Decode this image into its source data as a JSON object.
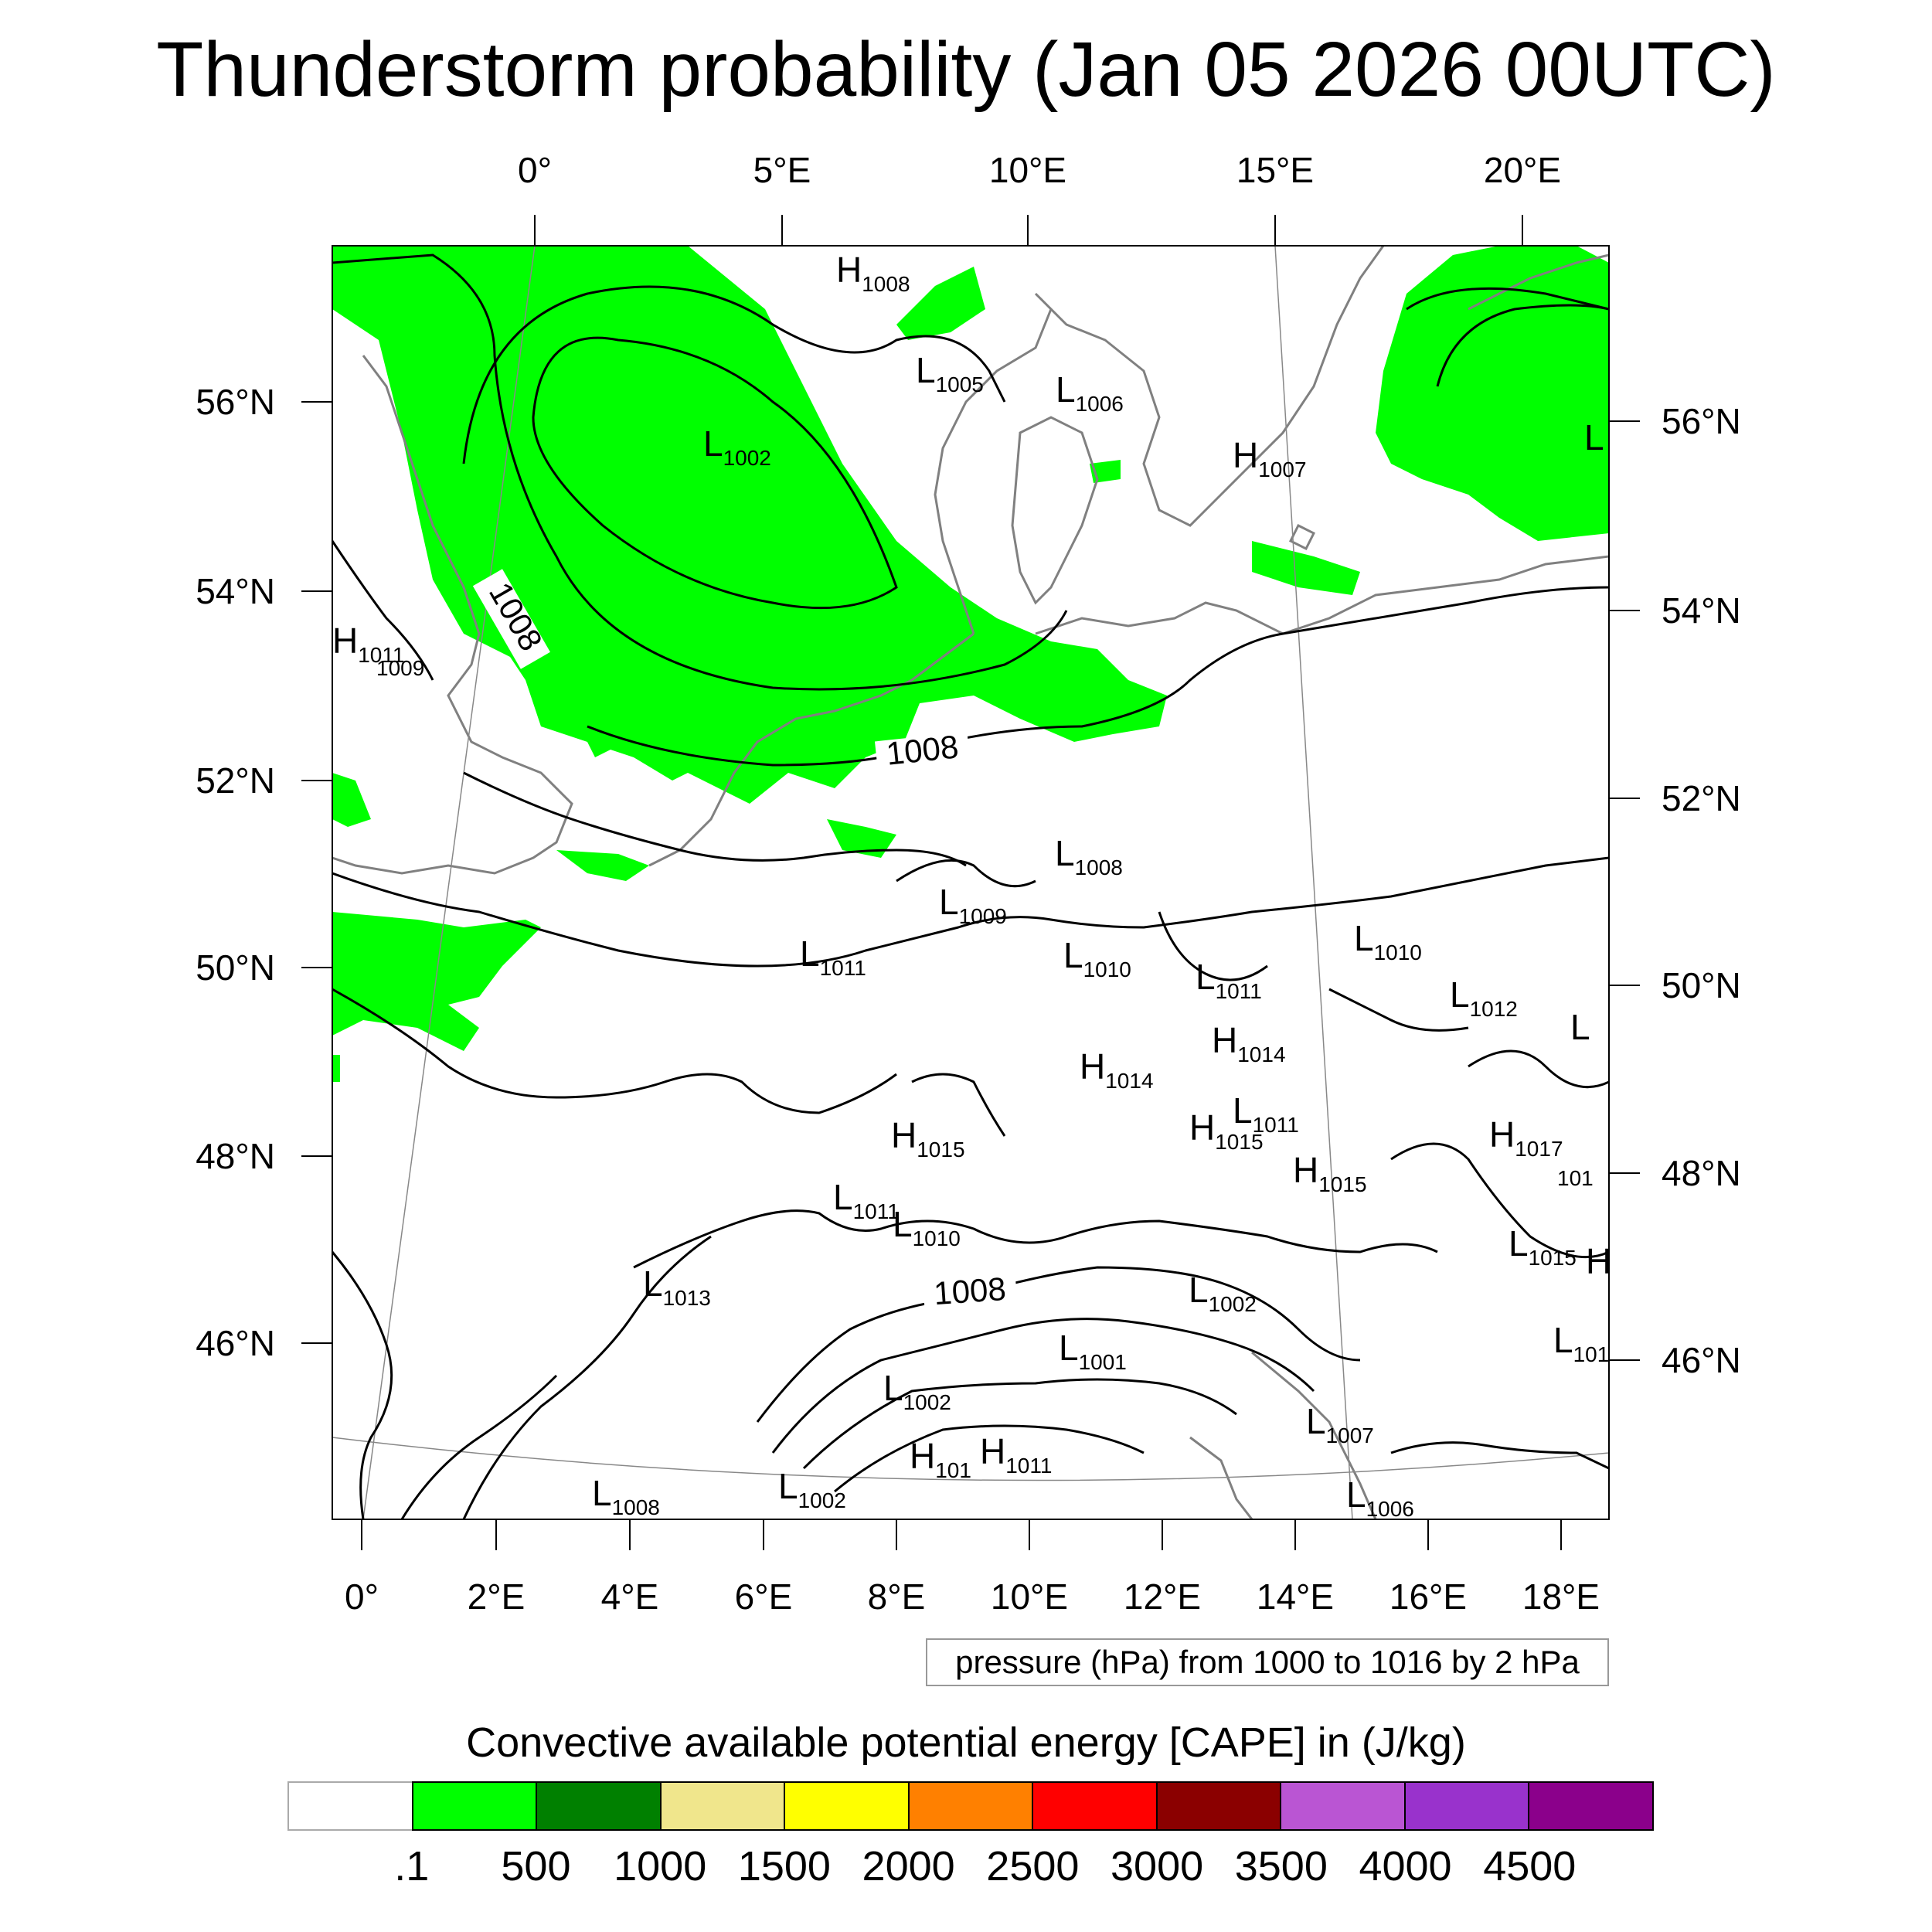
{
  "title": "Thunderstorm probability (Jan 05 2026 00UTC)",
  "map": {
    "top_lon_labels": [
      "0°",
      "5°E",
      "10°E",
      "15°E",
      "20°E"
    ],
    "bottom_lon_labels": [
      "0°",
      "2°E",
      "4°E",
      "6°E",
      "8°E",
      "10°E",
      "12°E",
      "14°E",
      "16°E",
      "18°E"
    ],
    "left_lat_labels": [
      "56°N",
      "54°N",
      "52°N",
      "50°N",
      "48°N",
      "46°N"
    ],
    "right_lat_labels": [
      "56°N",
      "54°N",
      "52°N",
      "50°N",
      "48°N",
      "46°N"
    ],
    "contour_labels": [
      "1008",
      "1008",
      "1008"
    ],
    "pressure_centers": [
      {
        "letter": "H",
        "value": "1008"
      },
      {
        "letter": "L",
        "value": "1005"
      },
      {
        "letter": "L",
        "value": "1006"
      },
      {
        "letter": "L",
        "value": "1002"
      },
      {
        "letter": "H",
        "value": "1007"
      },
      {
        "letter": "L",
        "value": ""
      },
      {
        "letter": "H",
        "value": "1011"
      },
      {
        "letter": "",
        "value": "1009"
      },
      {
        "letter": "L",
        "value": "1008"
      },
      {
        "letter": "L",
        "value": "1009"
      },
      {
        "letter": "L",
        "value": "1011"
      },
      {
        "letter": "L",
        "value": "1010"
      },
      {
        "letter": "L",
        "value": "1011"
      },
      {
        "letter": "L",
        "value": "1010"
      },
      {
        "letter": "L",
        "value": "1012"
      },
      {
        "letter": "L",
        "value": ""
      },
      {
        "letter": "H",
        "value": "1014"
      },
      {
        "letter": "H",
        "value": "1014"
      },
      {
        "letter": "L",
        "value": "1011"
      },
      {
        "letter": "H",
        "value": "1015"
      },
      {
        "letter": "H",
        "value": "1015"
      },
      {
        "letter": "H",
        "value": "1015"
      },
      {
        "letter": "H",
        "value": "1017"
      },
      {
        "letter": "",
        "value": "101"
      },
      {
        "letter": "L",
        "value": "1011"
      },
      {
        "letter": "L",
        "value": "1010"
      },
      {
        "letter": "L",
        "value": "1015"
      },
      {
        "letter": "H",
        "value": ""
      },
      {
        "letter": "L",
        "value": "1013"
      },
      {
        "letter": "L",
        "value": "1002"
      },
      {
        "letter": "L",
        "value": "1001"
      },
      {
        "letter": "L",
        "value": "101"
      },
      {
        "letter": "L",
        "value": "1002"
      },
      {
        "letter": "L",
        "value": "1007"
      },
      {
        "letter": "H",
        "value": "101"
      },
      {
        "letter": "H",
        "value": "1011"
      },
      {
        "letter": "L",
        "value": "1008"
      },
      {
        "letter": "L",
        "value": "1002"
      },
      {
        "letter": "L",
        "value": "1006"
      }
    ]
  },
  "pressure_legend": "pressure (hPa) from 1000 to 1016 by 2 hPa",
  "cape": {
    "title": "Convective available potential energy [CAPE] in (J/kg)",
    "colors": [
      "#ffffff",
      "#00ff00",
      "#008000",
      "#f0e68c",
      "#ffff00",
      "#ff8000",
      "#ff0000",
      "#8b0000",
      "#ba55d3",
      "#9932cc",
      "#8b008b"
    ],
    "labels": [
      ".1",
      "500",
      "1000",
      "1500",
      "2000",
      "2500",
      "3000",
      "3500",
      "4000",
      "4500"
    ]
  },
  "colors": {
    "cape_shade": "#00ff00",
    "coast": "#808080",
    "contour": "#000000"
  }
}
